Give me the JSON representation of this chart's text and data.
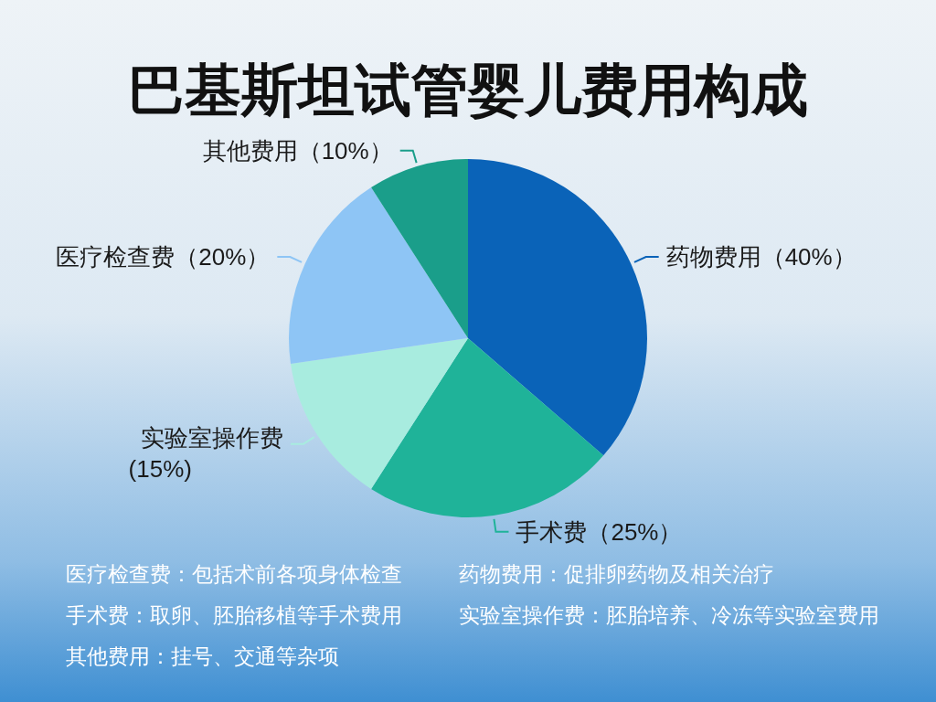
{
  "chart_data": {
    "type": "pie",
    "title": "巴基斯坦试管婴儿费用构成",
    "categories": [
      "药物费用",
      "手术费",
      "实验室操作费",
      "医疗检查费",
      "其他费用"
    ],
    "values": [
      40,
      25,
      15,
      20,
      10
    ],
    "value_labels": [
      "（40%）",
      "（25%）",
      "(15%)",
      "（20%）",
      "（10%）"
    ],
    "colors": [
      "#0a63b8",
      "#1fb399",
      "#a8ecdf",
      "#8ec5f5",
      "#1a9e8a"
    ],
    "annotations": [
      "医疗检查费：包括术前各项身体检查",
      "药物费用：促排卵药物及相关治疗",
      "手术费：取卵、胚胎移植等手术费用",
      "实验室操作费：胚胎培养、冷冻等实验室费用",
      "其他费用：挂号、交通等杂项"
    ]
  }
}
